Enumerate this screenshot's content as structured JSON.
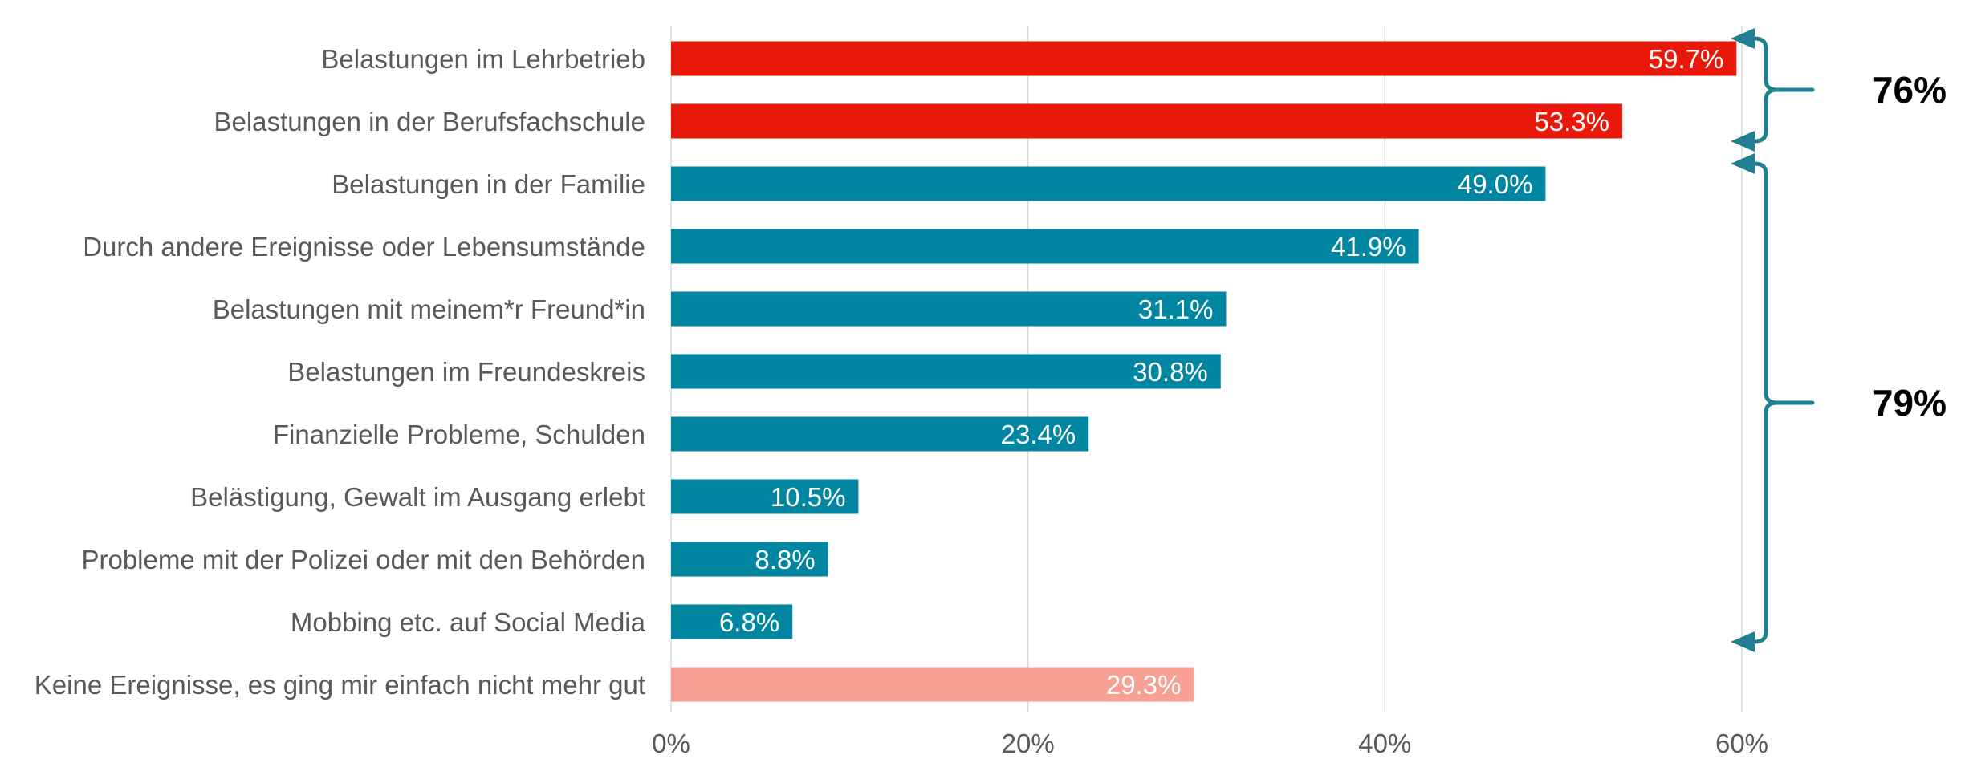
{
  "chart_data": {
    "type": "bar",
    "orientation": "horizontal",
    "categories": [
      "Belastungen im Lehrbetrieb",
      "Belastungen in der Berufsfachschule",
      "Belastungen in der Familie",
      "Durch andere Ereignisse oder Lebensumstände",
      "Belastungen mit meinem*r Freund*in",
      "Belastungen im Freundeskreis",
      "Finanzielle Probleme, Schulden",
      "Belästigung, Gewalt im Ausgang erlebt",
      "Probleme mit der Polizei oder mit den Behörden",
      "Mobbing etc. auf Social Media",
      "Keine  Ereignisse, es ging mir einfach nicht mehr gut"
    ],
    "values": [
      59.7,
      53.3,
      49.0,
      41.9,
      31.1,
      30.8,
      23.4,
      10.5,
      8.8,
      6.8,
      29.3
    ],
    "value_labels": [
      "59.7%",
      "53.3%",
      "49.0%",
      "41.9%",
      "31.1%",
      "30.8%",
      "23.4%",
      "10.5%",
      "8.8%",
      "6.8%",
      "29.3%"
    ],
    "bar_colors": [
      "#e8190b",
      "#e8190b",
      "#0086a0",
      "#0086a0",
      "#0086a0",
      "#0086a0",
      "#0086a0",
      "#0086a0",
      "#0086a0",
      "#0086a0",
      "#f8a094"
    ],
    "xlim": [
      0,
      60
    ],
    "xticks": [
      0,
      20,
      40,
      60
    ],
    "xtick_labels": [
      "0%",
      "20%",
      "40%",
      "60%"
    ],
    "grid": "vertical",
    "title": "",
    "xlabel": "",
    "ylabel": "",
    "brackets": [
      {
        "label": "76%",
        "from_category": 0,
        "to_category": 1,
        "color": "#1f7f93"
      },
      {
        "label": "79%",
        "from_category": 2,
        "to_category": 9,
        "color": "#1f7f93"
      }
    ],
    "colors": {
      "grid": "#d9d9d9",
      "category_text": "#595959",
      "bar_label_text": "#ffffff",
      "bracket_label_text": "#000000"
    }
  }
}
